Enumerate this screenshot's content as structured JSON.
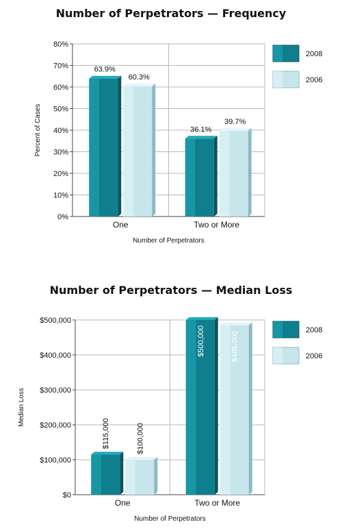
{
  "colors": {
    "series_2008_front": "#0f7f8d",
    "series_2008_light": "#22a9b7",
    "series_2008_dark": "#0a5560",
    "series_2006_front": "#c6e6ec",
    "series_2006_light": "#e6f5f8",
    "series_2006_dark": "#8fb9c2",
    "grid": "#b8b8b8",
    "axis": "#444444"
  },
  "chart_data": [
    {
      "type": "bar",
      "title": "Number of Perpetrators — Frequency",
      "xlabel": "Number of Perpetrators",
      "ylabel": "Percent of Cases",
      "categories": [
        "One",
        "Two or More"
      ],
      "series": [
        {
          "name": "2008",
          "values": [
            63.9,
            36.1
          ],
          "labels": [
            "63.9%",
            "36.1%"
          ]
        },
        {
          "name": "2006",
          "values": [
            60.3,
            39.7
          ],
          "labels": [
            "60.3%",
            "39.7%"
          ]
        }
      ],
      "ylim": [
        0,
        80
      ],
      "yticks": [
        0,
        10,
        20,
        30,
        40,
        50,
        60,
        70,
        80
      ],
      "ytick_labels": [
        "0%",
        "10%",
        "20%",
        "30%",
        "40%",
        "50%",
        "60%",
        "70%",
        "80%"
      ],
      "legend": "right",
      "label_orientation": "horizontal"
    },
    {
      "type": "bar",
      "title": "Number of Perpetrators — Median Loss",
      "xlabel": "Number of Perpetrators",
      "ylabel": "Median Loss",
      "categories": [
        "One",
        "Two or More"
      ],
      "series": [
        {
          "name": "2008",
          "values": [
            115000,
            500000
          ],
          "labels": [
            "$115,000",
            "$500,000"
          ]
        },
        {
          "name": "2006",
          "values": [
            100000,
            485000
          ],
          "labels": [
            "$100,000",
            "$485,000"
          ]
        }
      ],
      "ylim": [
        0,
        500000
      ],
      "yticks": [
        0,
        100000,
        200000,
        300000,
        400000,
        500000
      ],
      "ytick_labels": [
        "$0",
        "$100,000",
        "$200,000",
        "$300,000",
        "$400,000",
        "$500,000"
      ],
      "legend": "right",
      "label_orientation": "vertical"
    }
  ]
}
